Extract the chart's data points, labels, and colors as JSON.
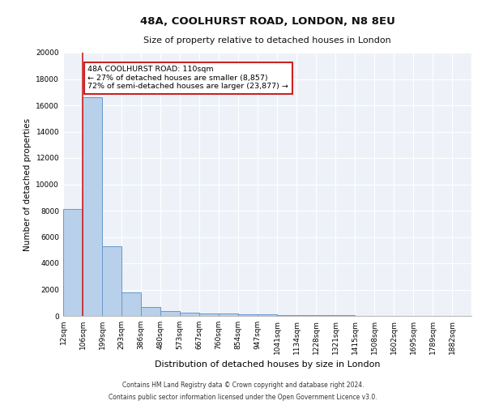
{
  "title1": "48A, COOLHURST ROAD, LONDON, N8 8EU",
  "title2": "Size of property relative to detached houses in London",
  "xlabel": "Distribution of detached houses by size in London",
  "ylabel": "Number of detached properties",
  "bin_labels": [
    "12sqm",
    "106sqm",
    "199sqm",
    "293sqm",
    "386sqm",
    "480sqm",
    "573sqm",
    "667sqm",
    "760sqm",
    "854sqm",
    "947sqm",
    "1041sqm",
    "1134sqm",
    "1228sqm",
    "1321sqm",
    "1415sqm",
    "1508sqm",
    "1602sqm",
    "1695sqm",
    "1789sqm",
    "1882sqm"
  ],
  "bar_values": [
    8100,
    16600,
    5300,
    1800,
    700,
    350,
    270,
    200,
    160,
    130,
    110,
    85,
    65,
    50,
    38,
    28,
    22,
    16,
    12,
    8,
    5
  ],
  "bar_color": "#b8d0ea",
  "bar_edge_color": "#6699cc",
  "vline_x": 1.0,
  "vline_color": "#cc2222",
  "annotation_text": "48A COOLHURST ROAD: 110sqm\n← 27% of detached houses are smaller (8,857)\n72% of semi-detached houses are larger (23,877) →",
  "annotation_box_facecolor": "#ffffff",
  "annotation_box_edgecolor": "#cc2222",
  "ylim": [
    0,
    20000
  ],
  "yticks": [
    0,
    2000,
    4000,
    6000,
    8000,
    10000,
    12000,
    14000,
    16000,
    18000,
    20000
  ],
  "footer1": "Contains HM Land Registry data © Crown copyright and database right 2024.",
  "footer2": "Contains public sector information licensed under the Open Government Licence v3.0.",
  "plot_bg_color": "#eef2f8",
  "grid_color": "#ffffff",
  "title1_fontsize": 9.5,
  "title2_fontsize": 8,
  "ylabel_fontsize": 7.5,
  "xlabel_fontsize": 8,
  "tick_fontsize": 6.5,
  "footer_fontsize": 5.5,
  "annot_fontsize": 6.8
}
